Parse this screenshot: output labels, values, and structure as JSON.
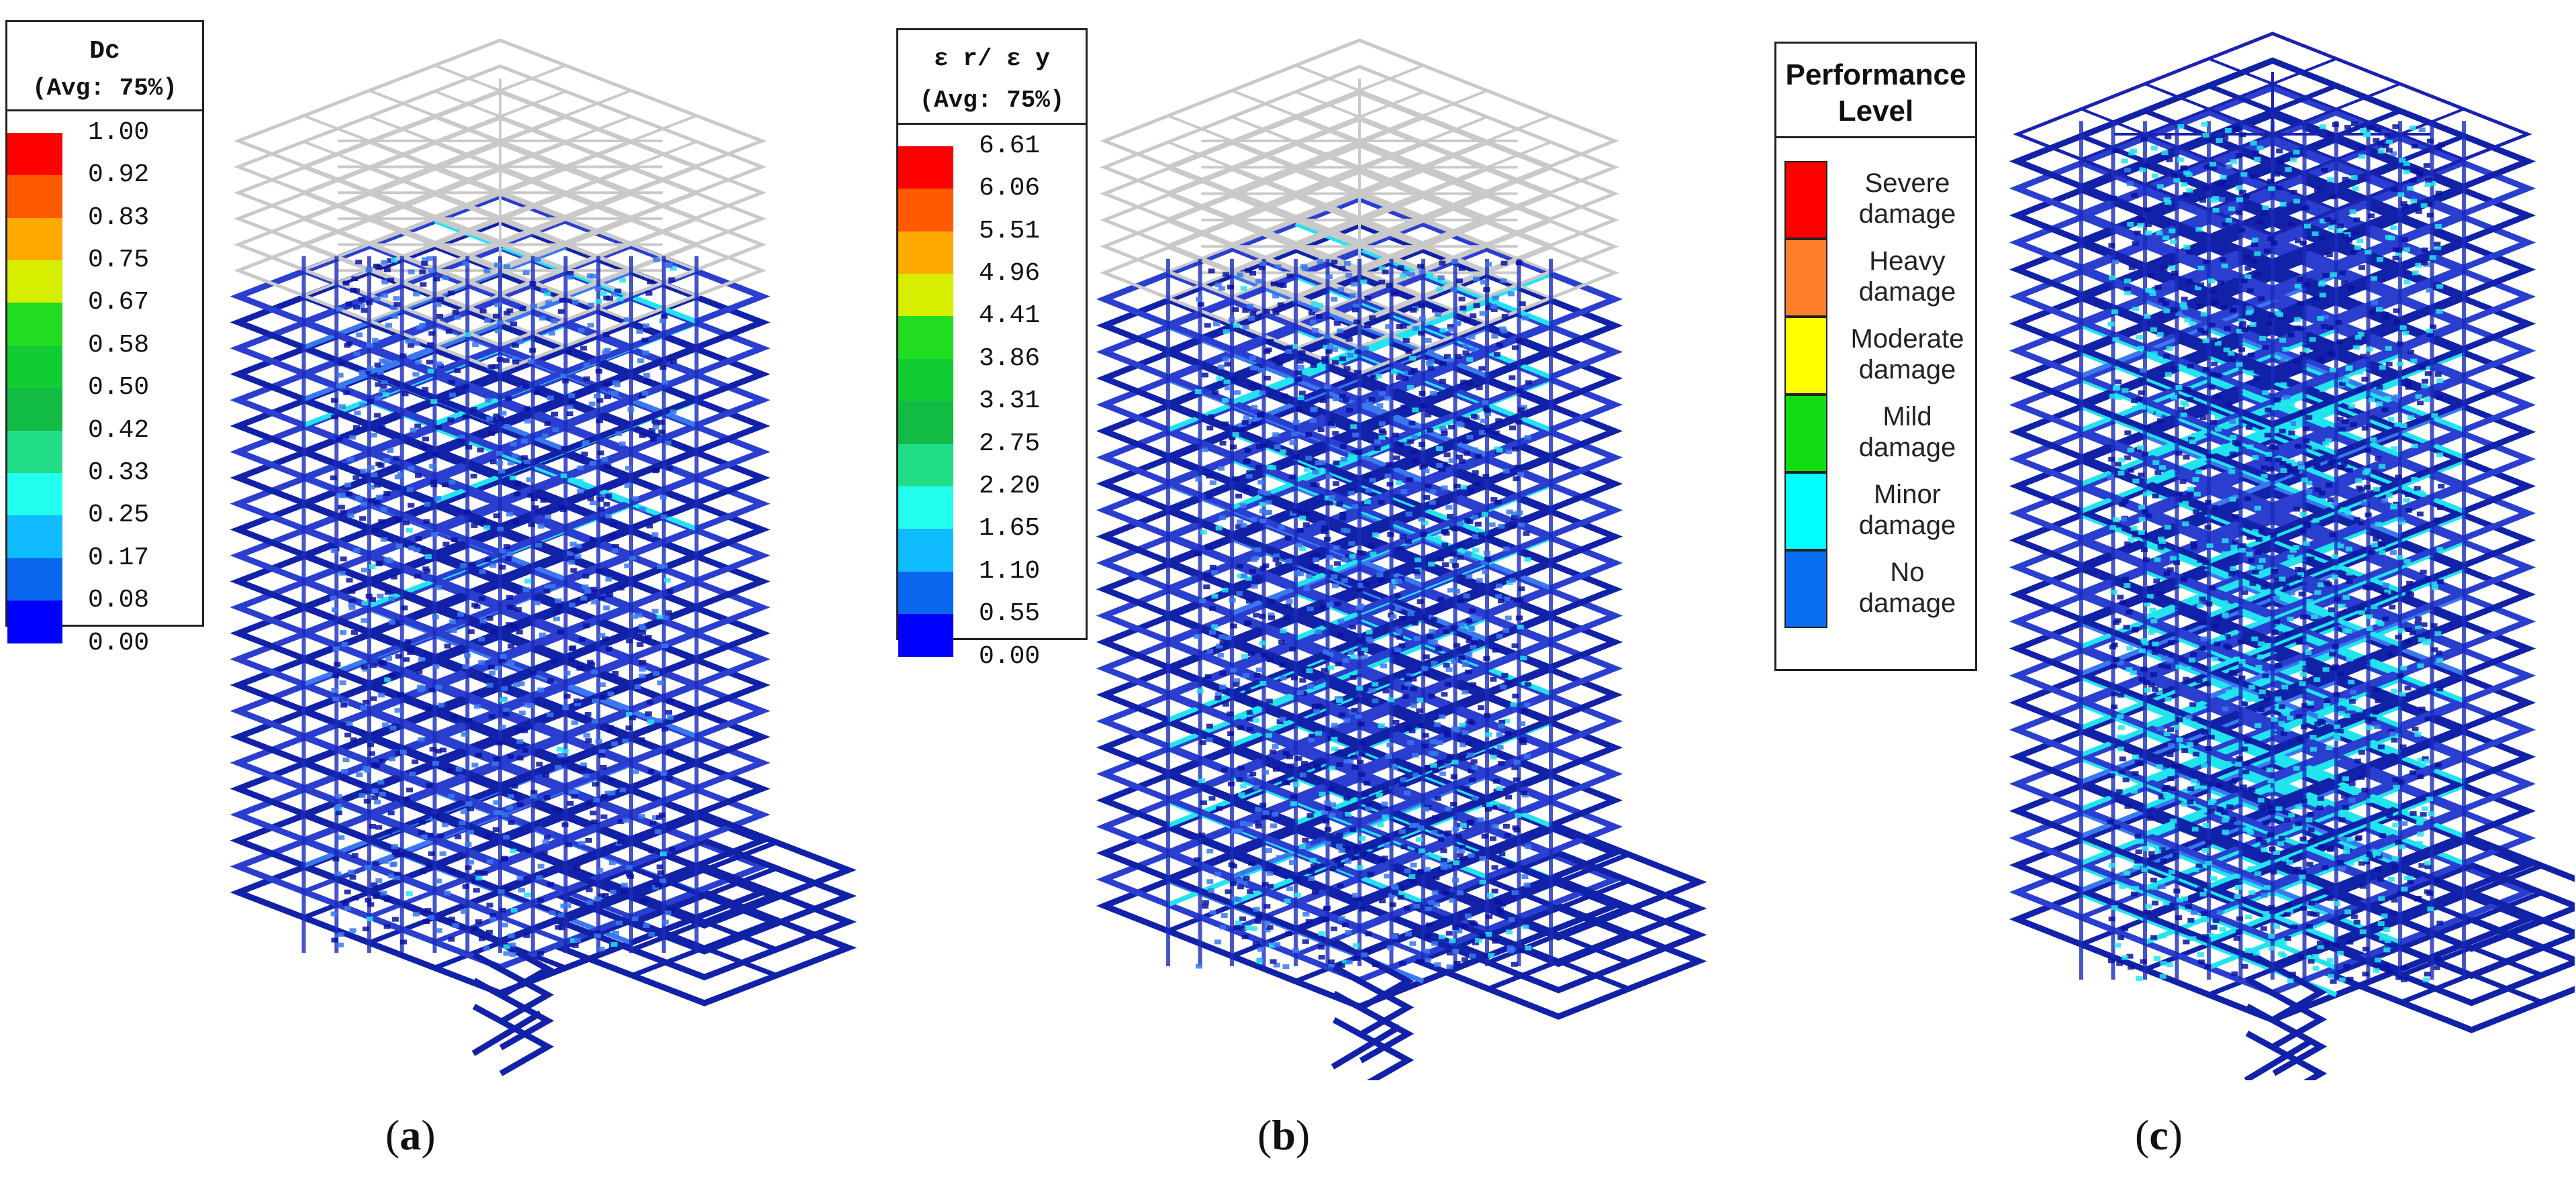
{
  "panels": [
    {
      "caption_letter": "a",
      "legend": {
        "title_line1": "Dc",
        "title_line2": "(Avg: 75%)",
        "values": [
          "1.00",
          "0.92",
          "0.83",
          "0.75",
          "0.67",
          "0.58",
          "0.50",
          "0.42",
          "0.33",
          "0.25",
          "0.17",
          "0.08",
          "0.00"
        ],
        "colors": [
          "#ff0000",
          "#ff5a00",
          "#ffaa00",
          "#d8ee00",
          "#22dd22",
          "#11cc33",
          "#11bb44",
          "#22dd88",
          "#22ffee",
          "#11bbff",
          "#0a66ee",
          "#0000ff"
        ]
      },
      "tower": {
        "damage": "low",
        "top_frame_color": "#c9c9c9"
      }
    },
    {
      "caption_letter": "b",
      "legend": {
        "title_line1": "ε r/ ε y",
        "title_line2": "(Avg: 75%)",
        "values": [
          "6.61",
          "6.06",
          "5.51",
          "4.96",
          "4.41",
          "3.86",
          "3.31",
          "2.75",
          "2.20",
          "1.65",
          "1.10",
          "0.55",
          "0.00"
        ],
        "colors": [
          "#ff0000",
          "#ff5a00",
          "#ffaa00",
          "#d8ee00",
          "#22dd22",
          "#11cc33",
          "#11bb44",
          "#22dd88",
          "#22ffee",
          "#11bbff",
          "#0a66ee",
          "#0000ff"
        ]
      },
      "tower": {
        "damage": "low-mid",
        "top_frame_color": "#c9c9c9"
      }
    },
    {
      "caption_letter": "c",
      "legend": {
        "title_line1": "Performance",
        "title_line2": "Level",
        "items": [
          {
            "line1": "Severe",
            "line2": "damage",
            "color": "#ff0000"
          },
          {
            "line1": "Heavy",
            "line2": "damage",
            "color": "#ff7f2a"
          },
          {
            "line1": "Moderate",
            "line2": "damage",
            "color": "#ffff00"
          },
          {
            "line1": "Mild",
            "line2": "damage",
            "color": "#11dd11"
          },
          {
            "line1": "Minor",
            "line2": "damage",
            "color": "#00ffff"
          },
          {
            "line1": "No",
            "line2": "damage",
            "color": "#0a6ef0"
          }
        ]
      },
      "tower": {
        "damage": "mid",
        "top_frame_color": "#1a23b0"
      }
    }
  ]
}
